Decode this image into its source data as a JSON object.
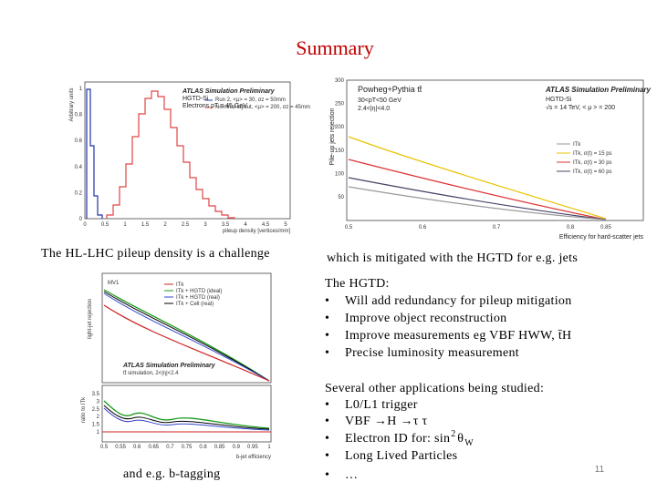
{
  "title": "Summary",
  "figures": [
    {
      "caption": "The HL-LHC pileup density is a challenge",
      "ylabel": "Arbitrary units",
      "xlabel": "pileup density [vertices/mm]",
      "experiment": "ATLAS Simulation Preliminary",
      "detector": "HGTD-Si",
      "sample": "Electrons pT = 45 GeV",
      "legend": [
        "Run 2, <μ> = 30, σz = 50mm",
        "Nominal layout, <μ> = 200, σz = 45mm"
      ],
      "xticks": [
        "0",
        "0.5",
        "1",
        "1.5",
        "2",
        "2.5",
        "3",
        "3.5",
        "4",
        "4.5",
        "5"
      ],
      "yticks": [
        "0",
        "0.2",
        "0.4",
        "0.6",
        "0.8",
        "1"
      ]
    },
    {
      "caption": "which is mitigated with the HGTD for e.g. jets",
      "ylabel": "Pile-up jets rejection",
      "xlabel": "Efficiency for hard-scatter jets",
      "generator": "Powheg+Pythia tt̄",
      "cuts": [
        "30<pT<50 GeV",
        "2.4<|η|<4.0"
      ],
      "experiment": "ATLAS Simulation Preliminary",
      "detector": "HGTD-Si",
      "conditions": "√s = 14 TeV, < μ > = 200",
      "legend": [
        "ITk",
        "ITk, σ(t) = 15 ps",
        "ITk, σ(t) = 30 ps",
        "ITk, σ(t) = 60 ps"
      ],
      "xticks": [
        "0.5",
        "0.6",
        "0.7",
        "0.8",
        "0.85"
      ],
      "yticks": [
        "50",
        "100",
        "150",
        "200",
        "250",
        "300"
      ]
    },
    {
      "caption": "and e.g. b-tagging",
      "ylabel": "light-jet rejection",
      "ratio_label": "ratio to ITk",
      "xlabel": "b-jet efficiency",
      "tagger": "MV1",
      "experiment": "ATLAS Simulation Preliminary",
      "sample": "tt̄ simulation, 2<|η|<2.4",
      "legend": [
        "ITk",
        "ITk + HGTD (ideal)",
        "ITk + HGTD (real)",
        "ITk + Cell (real)"
      ],
      "xticks": [
        "0.5",
        "0.55",
        "0.6",
        "0.65",
        "0.7",
        "0.75",
        "0.8",
        "0.85",
        "0.9",
        "0.95",
        "1"
      ],
      "ratio_ticks": [
        "1",
        "1.5",
        "2",
        "2.5",
        "3",
        "3.5"
      ]
    }
  ],
  "hgtd": {
    "heading": "The HGTD:",
    "bullets": [
      "Will add redundancy for pileup mitigation",
      "Improve object reconstruction",
      "Improve measurements eg VBF HWW,  t̄H",
      "Precise luminosity measurement"
    ]
  },
  "applications": {
    "heading": "Several other applications being studied:",
    "bullets": [
      "L0/L1 trigger",
      "VBF →H →τ τ",
      "Electron ID for:  sin",
      "Long Lived Particles",
      "…"
    ],
    "sup": "2",
    "theta": "θ",
    "sub": "W"
  },
  "page_number": "11"
}
